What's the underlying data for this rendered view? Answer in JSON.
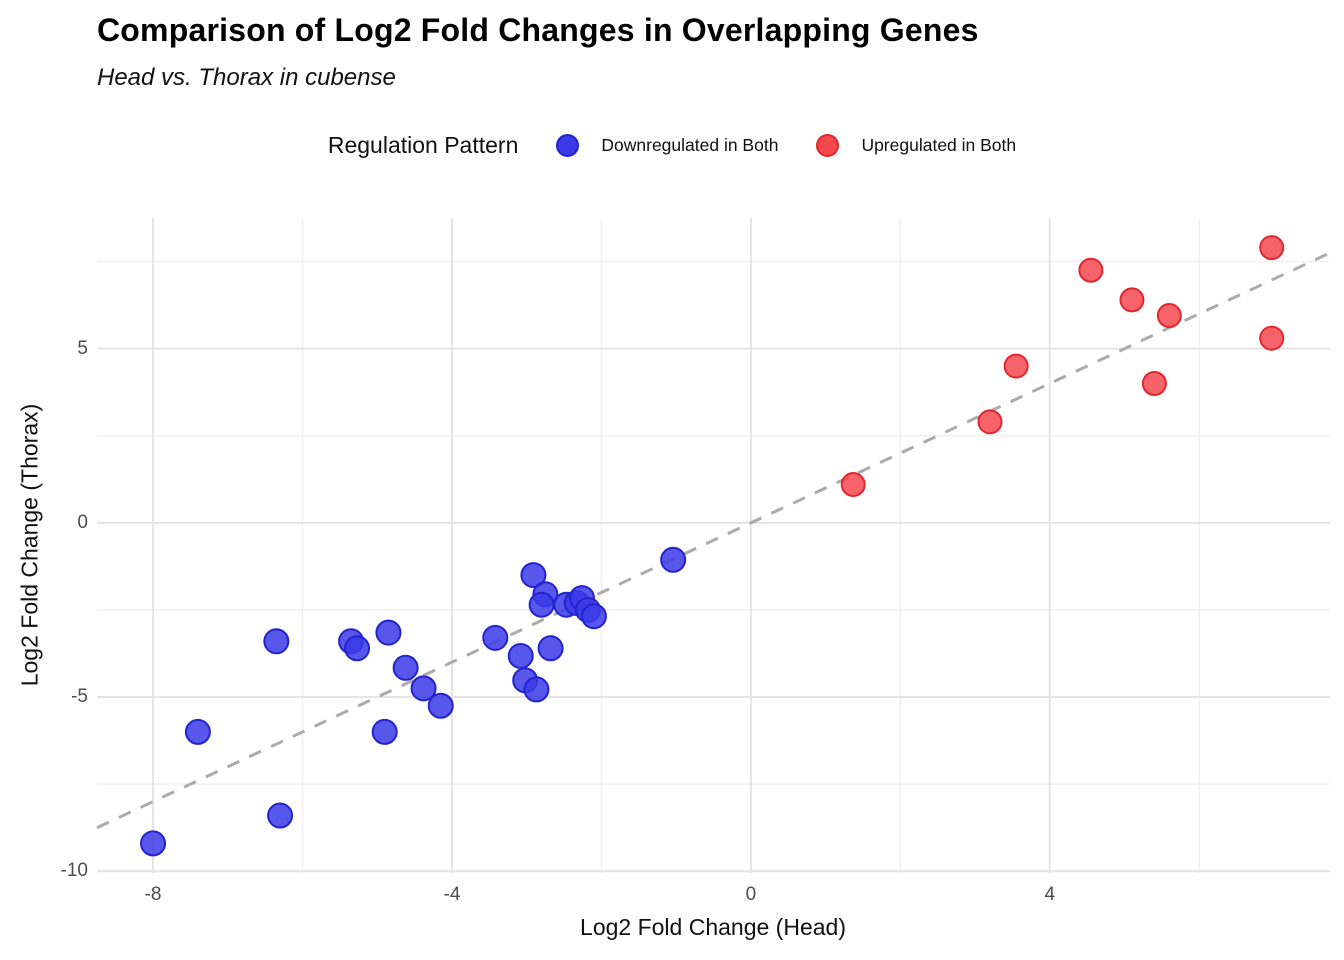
{
  "header": {
    "title": "Comparison of Log2 Fold Changes in Overlapping Genes",
    "subtitle": "Head vs. Thorax in cubense"
  },
  "legend": {
    "title": "Regulation Pattern",
    "position": "top-center"
  },
  "axes": {
    "x_label": "Log2 Fold Change (Head)",
    "y_label": "Log2 Fold Change (Thorax)"
  },
  "chart_data": {
    "type": "scatter",
    "title": "Comparison of Log2 Fold Changes in Overlapping Genes",
    "subtitle": "Head vs. Thorax in cubense",
    "xlabel": "Log2 Fold Change (Head)",
    "ylabel": "Log2 Fold Change (Thorax)",
    "xlim": [
      -8.75,
      7.75
    ],
    "ylim": [
      -10.05,
      8.75
    ],
    "x_major_ticks": [
      -8,
      -4,
      0,
      4
    ],
    "x_minor_ticks": [
      -6,
      -2,
      2,
      6
    ],
    "y_major_ticks": [
      5,
      0,
      -5,
      -10
    ],
    "y_minor_ticks": [
      7.5,
      2.5,
      -2.5,
      -7.5
    ],
    "grid": "on",
    "legend_position": "top",
    "identity_line": {
      "style": "dashed",
      "from": [
        -8.75,
        -8.75
      ],
      "to": [
        7.75,
        7.75
      ],
      "color": "#ababab"
    },
    "series": [
      {
        "name": "Downregulated in Both",
        "color": "#3a3ae8",
        "stroke": "#2323ce",
        "marker_radius": 12,
        "points": [
          [
            -8.0,
            -9.2
          ],
          [
            -7.4,
            -6.0
          ],
          [
            -6.35,
            -3.4
          ],
          [
            -6.3,
            -8.4
          ],
          [
            -5.35,
            -3.4
          ],
          [
            -5.27,
            -3.6
          ],
          [
            -4.9,
            -6.0
          ],
          [
            -4.85,
            -3.15
          ],
          [
            -4.62,
            -4.16
          ],
          [
            -4.38,
            -4.75
          ],
          [
            -4.15,
            -5.25
          ],
          [
            -3.42,
            -3.3
          ],
          [
            -3.08,
            -3.82
          ],
          [
            -3.02,
            -4.52
          ],
          [
            -2.87,
            -4.78
          ],
          [
            -2.91,
            -1.5
          ],
          [
            -2.75,
            -2.05
          ],
          [
            -2.8,
            -2.35
          ],
          [
            -2.68,
            -3.6
          ],
          [
            -2.47,
            -2.35
          ],
          [
            -2.33,
            -2.3
          ],
          [
            -2.26,
            -2.16
          ],
          [
            -2.18,
            -2.5
          ],
          [
            -2.1,
            -2.68
          ],
          [
            -1.04,
            -1.06
          ]
        ]
      },
      {
        "name": "Upregulated in Both",
        "color": "#f5484d",
        "stroke": "#e0282e",
        "marker_radius": 11.5,
        "points": [
          [
            1.37,
            1.1
          ],
          [
            3.2,
            2.9
          ],
          [
            3.55,
            4.5
          ],
          [
            4.55,
            7.25
          ],
          [
            5.1,
            6.4
          ],
          [
            5.4,
            4.0
          ],
          [
            5.6,
            5.95
          ],
          [
            6.97,
            7.9
          ],
          [
            6.97,
            5.3
          ]
        ]
      }
    ],
    "panel_colors": {
      "background": "#ffffff",
      "grid_major": "#e4e4e4",
      "grid_minor": "#f0f0f0"
    }
  }
}
